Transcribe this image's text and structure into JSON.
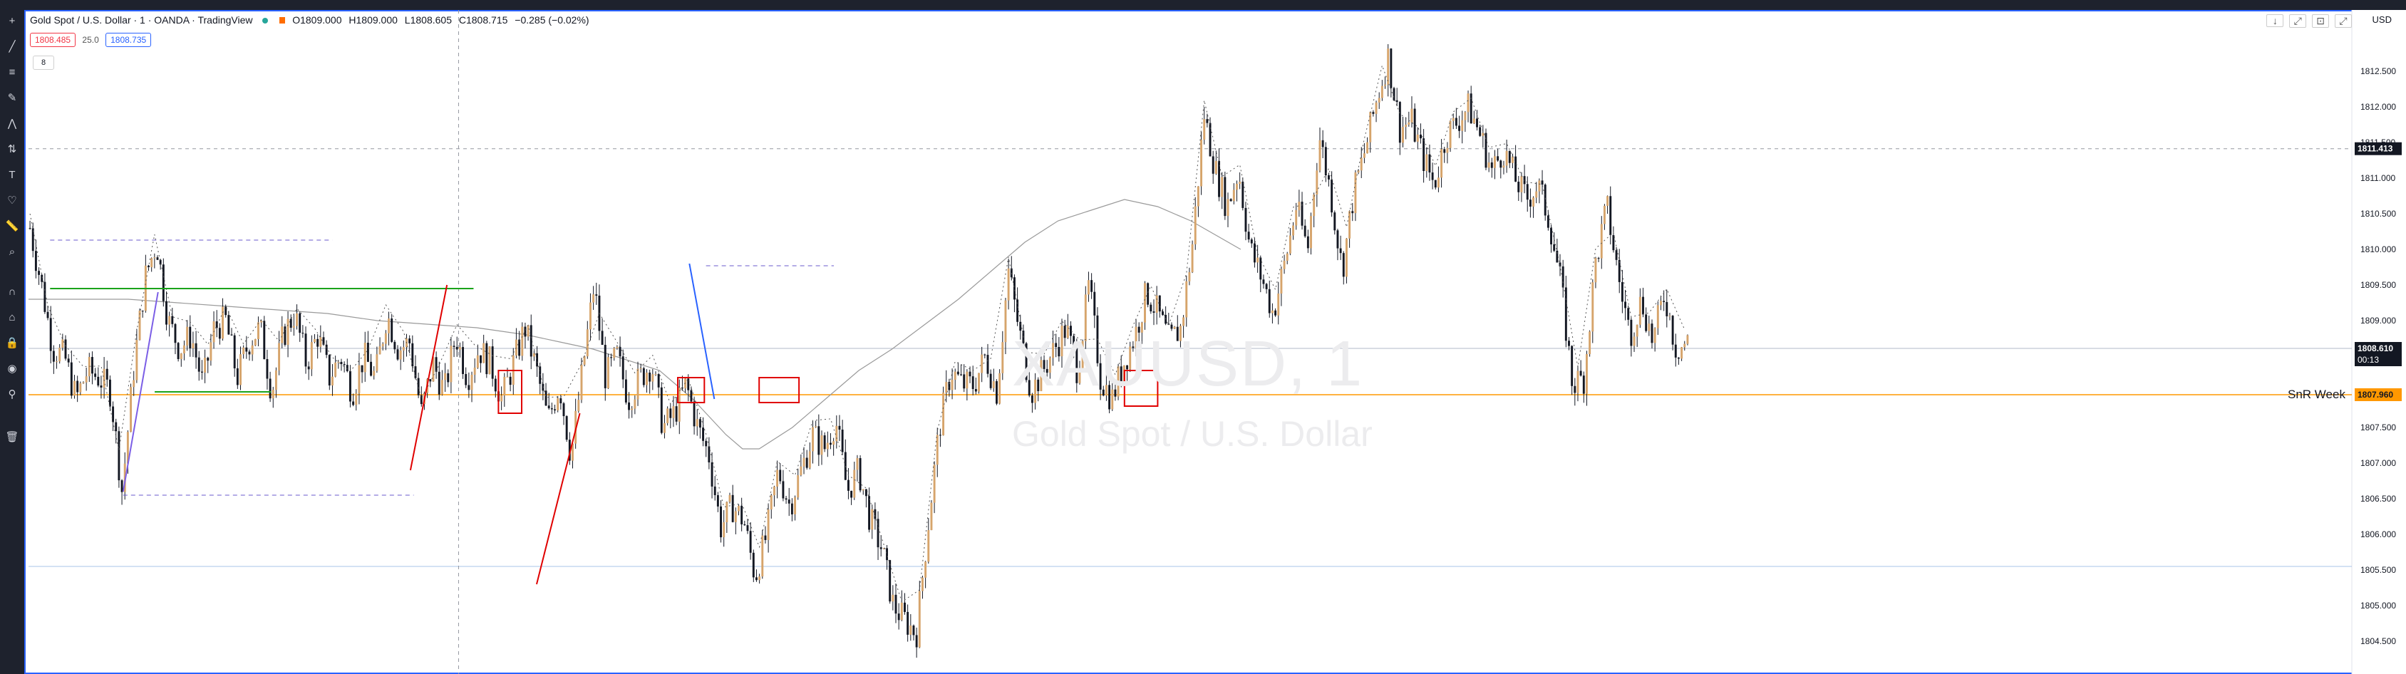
{
  "legend": {
    "title": "Gold Spot / U.S. Dollar · 1 · OANDA · TradingView",
    "open": "O1809.000",
    "high": "H1809.000",
    "low": "L1808.605",
    "close": "C1808.715",
    "change": "−0.285 (−0.02%)"
  },
  "quote": {
    "bid": "1808.485",
    "spread": "25.0",
    "ask": "1808.735"
  },
  "indicator_badge": "8",
  "currency": "USD",
  "watermark": {
    "symbol": "XAUUSD, 1",
    "name": "Gold Spot / U.S. Dollar"
  },
  "snr_label": "SnR Week",
  "window_controls": [
    "↓",
    "⤢",
    "⊡",
    "⤢"
  ],
  "colors": {
    "up": "#d6a46b",
    "down": "#131722",
    "ma": "#9a9a9a",
    "orange": "#ff9800",
    "accent": "#2962ff",
    "box": "#e00000",
    "green": "#1aa31a"
  },
  "chart_data": {
    "type": "candlestick",
    "symbol": "XAUUSD",
    "timeframe": "1",
    "ylim": [
      1804.2,
      1813.2
    ],
    "y_ticks": [
      "1812.500",
      "1812.000",
      "1811.500",
      "1811.000",
      "1810.500",
      "1810.000",
      "1809.500",
      "1809.000",
      "1808.500",
      "1808.000",
      "1807.500",
      "1807.000",
      "1806.500",
      "1806.000",
      "1805.500",
      "1805.000",
      "1804.500"
    ],
    "price_labels": {
      "crosshair": "1811.413",
      "last": "1808.610",
      "countdown": "00:13",
      "snr": "1807.960"
    },
    "close_path": [
      1810.3,
      1809.5,
      1808.6,
      1808.5,
      1807.9,
      1808.3,
      1808.2,
      1808.0,
      1806.6,
      1808.3,
      1809.6,
      1810.1,
      1809.0,
      1808.6,
      1808.8,
      1808.1,
      1808.9,
      1809.0,
      1808.2,
      1808.7,
      1808.9,
      1808.0,
      1808.8,
      1809.1,
      1808.4,
      1808.8,
      1808.2,
      1808.5,
      1808.0,
      1808.5,
      1808.2,
      1809.1,
      1808.6,
      1808.7,
      1807.7,
      1808.4,
      1808.0,
      1808.8,
      1808.2,
      1808.6,
      1808.4,
      1807.9,
      1808.4,
      1808.9,
      1808.3,
      1807.6,
      1808.1,
      1807.1,
      1808.3,
      1809.5,
      1808.2,
      1808.5,
      1807.9,
      1808.2,
      1808.4,
      1807.5,
      1807.7,
      1808.1,
      1807.5,
      1807.1,
      1806.1,
      1806.4,
      1806.2,
      1805.4,
      1806.0,
      1806.9,
      1806.4,
      1806.9,
      1807.4,
      1807.2,
      1807.6,
      1806.6,
      1806.9,
      1806.2,
      1805.8,
      1805.0,
      1804.8,
      1804.6,
      1806.1,
      1807.5,
      1808.3,
      1808.1,
      1808.1,
      1808.5,
      1808.0,
      1809.7,
      1808.8,
      1808.0,
      1808.3,
      1808.6,
      1808.9,
      1808.3,
      1809.5,
      1808.2,
      1807.9,
      1808.4,
      1808.8,
      1809.4,
      1809.1,
      1808.7,
      1808.9,
      1810.1,
      1811.9,
      1811.1,
      1810.6,
      1811.1,
      1810.0,
      1809.6,
      1809.1,
      1809.8,
      1810.6,
      1810.0,
      1811.6,
      1810.8,
      1809.7,
      1810.8,
      1811.4,
      1812.1,
      1812.7,
      1811.7,
      1811.8,
      1811.3,
      1810.9,
      1811.6,
      1811.8,
      1812.0,
      1811.6,
      1811.1,
      1811.4,
      1811.0,
      1810.7,
      1810.9,
      1810.4,
      1809.5,
      1808.1,
      1808.2,
      1809.8,
      1810.6,
      1809.6,
      1808.8,
      1809.3,
      1808.7,
      1809.4,
      1808.6,
      1808.7
    ]
  },
  "ma_path": [
    1809.3,
    1809.3,
    1809.3,
    1809.25,
    1809.2,
    1809.15,
    1809.1,
    1809.0,
    1808.95,
    1808.9,
    1808.8,
    1808.7,
    1808.6,
    1808.45,
    1808.3,
    1808.1,
    1807.9,
    1807.65,
    1807.4,
    1807.2,
    1807.2,
    1807.5,
    1807.9,
    1808.3,
    1808.6,
    1808.95,
    1809.3,
    1809.7,
    1810.1,
    1810.4,
    1810.55,
    1810.7,
    1810.6,
    1810.4,
    1810.2,
    1810.0
  ],
  "ma_x": [
    0.0,
    0.03,
    0.06,
    0.09,
    0.12,
    0.15,
    0.18,
    0.21,
    0.24,
    0.27,
    0.3,
    0.32,
    0.34,
    0.36,
    0.38,
    0.39,
    0.4,
    0.41,
    0.42,
    0.43,
    0.44,
    0.46,
    0.48,
    0.5,
    0.52,
    0.54,
    0.56,
    0.58,
    0.6,
    0.62,
    0.64,
    0.66,
    0.68,
    0.7,
    0.715,
    0.73
  ],
  "drawings": {
    "dashed_levels": [
      {
        "y": 1810.13,
        "x0": 0.013,
        "x1": 0.183
      },
      {
        "y": 1806.55,
        "x0": 0.057,
        "x1": 0.232
      },
      {
        "y": 1809.77,
        "x0": 0.408,
        "x1": 0.485
      }
    ],
    "green_levels": [
      {
        "y": 1809.45,
        "x0": 0.013,
        "x1": 0.268
      },
      {
        "y": 1808.0,
        "x0": 0.076,
        "x1": 0.146
      }
    ],
    "trend_lines": [
      {
        "c": "#e00000",
        "x0": 0.23,
        "y0": 1806.9,
        "x1": 0.252,
        "y1": 1809.5
      },
      {
        "c": "#e00000",
        "x0": 0.306,
        "y0": 1805.3,
        "x1": 0.332,
        "y1": 1807.7
      },
      {
        "c": "#7b5ee6",
        "x0": 0.057,
        "x1": 0.078,
        "y0": 1806.6,
        "y1": 1809.4
      },
      {
        "c": "#2962ff",
        "x0": 0.398,
        "y0": 1809.8,
        "x1": 0.413,
        "y1": 1807.9
      }
    ],
    "boxes": [
      {
        "x0": 0.283,
        "x1": 0.297,
        "y0": 1808.3,
        "y1": 1807.7
      },
      {
        "x0": 0.391,
        "x1": 0.407,
        "y0": 1808.2,
        "y1": 1807.85
      },
      {
        "x0": 0.44,
        "x1": 0.464,
        "y0": 1808.2,
        "y1": 1807.85
      },
      {
        "x0": 0.66,
        "x1": 0.68,
        "y0": 1808.3,
        "y1": 1807.8
      }
    ],
    "vertical_dashed_x": 0.259,
    "crosshair_y": 1811.413,
    "blue_level_y": 1805.55
  }
}
